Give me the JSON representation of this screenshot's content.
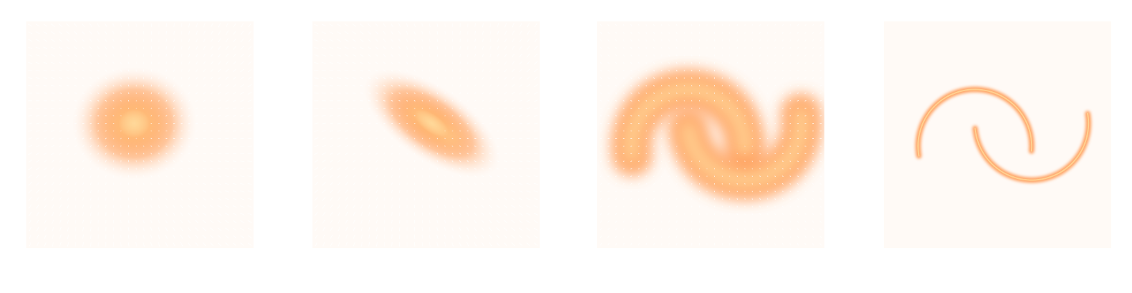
{
  "chart_data": [
    {
      "type": "heatmap",
      "title": "",
      "xlabel": "",
      "ylabel": "",
      "xlim": [
        -1,
        1
      ],
      "ylim": [
        -1,
        1
      ],
      "grid": false,
      "overlay": "vector-field",
      "density": {
        "kind": "gaussian",
        "center": [
          -0.05,
          0.1
        ],
        "spread": [
          0.55,
          0.5
        ]
      }
    },
    {
      "type": "heatmap",
      "title": "",
      "xlabel": "",
      "ylabel": "",
      "xlim": [
        -1,
        1
      ],
      "ylim": [
        -1,
        1
      ],
      "grid": false,
      "overlay": "vector-field",
      "density": {
        "kind": "stretched-gaussian",
        "center": [
          0.05,
          0.1
        ],
        "spread": [
          0.7,
          0.32
        ],
        "angle_deg": -35
      }
    },
    {
      "type": "heatmap",
      "title": "",
      "xlabel": "",
      "ylabel": "",
      "xlim": [
        -1,
        1
      ],
      "ylim": [
        -1,
        1
      ],
      "grid": false,
      "overlay": "vector-field",
      "density": {
        "kind": "two-moons",
        "thickness": 0.16
      }
    },
    {
      "type": "heatmap",
      "title": "",
      "xlabel": "",
      "ylabel": "",
      "xlim": [
        -1,
        1
      ],
      "ylim": [
        -1,
        1
      ],
      "grid": false,
      "overlay": "none",
      "density": {
        "kind": "two-moons",
        "thickness": 0.03
      }
    }
  ],
  "colors": {
    "background": "#fffaf6",
    "low": "#ffe9dc",
    "mid": "#ff9a52",
    "high": "#ffd99a",
    "arrow": "#ffffff"
  }
}
